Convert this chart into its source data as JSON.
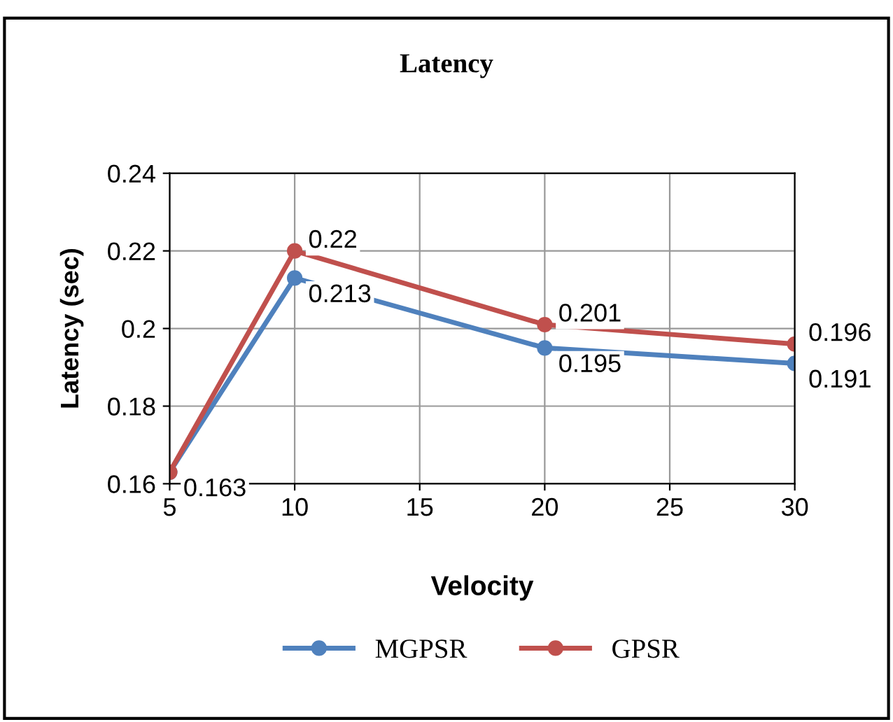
{
  "chart_data": {
    "type": "line",
    "title": "Latency",
    "xlabel": "Velocity",
    "ylabel": "Latency (sec)",
    "x": [
      5,
      10,
      20,
      30
    ],
    "series": [
      {
        "name": "MGPSR",
        "color": "#4f81bd",
        "values": [
          0.163,
          0.213,
          0.195,
          0.191
        ],
        "value_labels": [
          "0.163",
          "0.213",
          "0.195",
          "0.191"
        ]
      },
      {
        "name": "GPSR",
        "color": "#c0504d",
        "values": [
          0.163,
          0.22,
          0.201,
          0.196
        ],
        "value_labels": [
          null,
          "0.22",
          "0.201",
          "0.196"
        ]
      }
    ],
    "xlim": [
      5,
      30
    ],
    "xticks": [
      5,
      10,
      15,
      20,
      25,
      30
    ],
    "ylim": [
      0.16,
      0.24
    ],
    "yticks": [
      {
        "value": 0.16,
        "label": "0.16"
      },
      {
        "value": 0.18,
        "label": "0.18"
      },
      {
        "value": 0.2,
        "label": "0.2"
      },
      {
        "value": 0.22,
        "label": "0.22"
      },
      {
        "value": 0.24,
        "label": "0.24"
      }
    ],
    "grid": true,
    "legend": "bottom",
    "marker": "circle",
    "line_style": "solid"
  }
}
